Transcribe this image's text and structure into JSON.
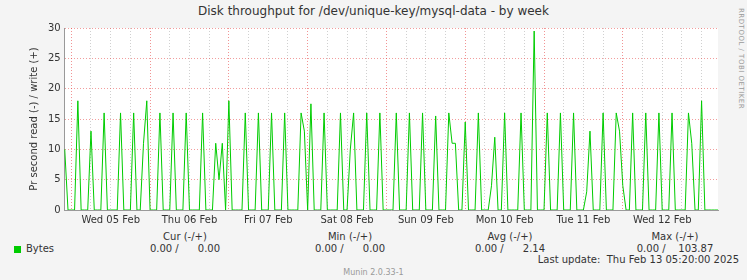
{
  "chart_data": {
    "type": "line",
    "title": "Disk throughput for /dev/unique-key/mysql-data - by week",
    "y_label": "Pr second read (-) / write (+)",
    "categories": [
      null,
      null,
      null,
      null,
      null,
      null,
      null,
      null,
      null,
      null,
      null,
      null,
      null,
      null,
      "Wed 05 Feb",
      null,
      null,
      null,
      null,
      null,
      null,
      null,
      null,
      null,
      null,
      null,
      null,
      null,
      null,
      null,
      null,
      null,
      null,
      null,
      null,
      null,
      null,
      null,
      "Thu 06 Feb",
      null,
      null,
      null,
      null,
      null,
      null,
      null,
      null,
      null,
      null,
      null,
      null,
      null,
      null,
      null,
      null,
      null,
      null,
      null,
      null,
      null,
      null,
      null,
      "Fri 07 Feb",
      null,
      null,
      null,
      null,
      null,
      null,
      null,
      null,
      null,
      null,
      null,
      null,
      null,
      null,
      null,
      null,
      null,
      null,
      null,
      null,
      null,
      null,
      null,
      "Sat 08 Feb",
      null,
      null,
      null,
      null,
      null,
      null,
      null,
      null,
      null,
      null,
      null,
      null,
      null,
      null,
      null,
      null,
      null,
      null,
      null,
      null,
      null,
      null,
      null,
      "Sun 09 Feb",
      null,
      null,
      null,
      null,
      null,
      null,
      null,
      null,
      null,
      null,
      null,
      null,
      null,
      null,
      null,
      null,
      null,
      null,
      null,
      null,
      null,
      null,
      null,
      "Mon 10 Feb",
      null,
      null,
      null,
      null,
      null,
      null,
      null,
      null,
      null,
      null,
      null,
      null,
      null,
      null,
      null,
      null,
      null,
      null,
      null,
      null,
      null,
      null,
      null,
      "Tue 11 Feb",
      null,
      null,
      null,
      null,
      null,
      null,
      null,
      null,
      null,
      null,
      null,
      null,
      null,
      null,
      null,
      null,
      null,
      null,
      null,
      null,
      null,
      null,
      null,
      "Wed 12 Feb",
      null,
      null,
      null,
      null,
      null,
      null,
      null,
      null,
      null,
      null,
      null,
      null,
      null,
      null,
      null,
      null,
      null
    ],
    "series": [
      {
        "name": "Bytes",
        "color": "#00cc00",
        "values": [
          10,
          0,
          0,
          0,
          18,
          0,
          0,
          0,
          13,
          0,
          0,
          0,
          16,
          0,
          0,
          0,
          0,
          16,
          0,
          0,
          0,
          16,
          0,
          0,
          11,
          18,
          0,
          0,
          0,
          16,
          0,
          0,
          0,
          16,
          0,
          0,
          0,
          16,
          0,
          0,
          0,
          0,
          16,
          0,
          0,
          0,
          11,
          5,
          11,
          0,
          18,
          0,
          0,
          0,
          0,
          16,
          0,
          0,
          0,
          16,
          0,
          0,
          0,
          16,
          0,
          0,
          0,
          16,
          0,
          0,
          0,
          0,
          16,
          13,
          0,
          17.5,
          0,
          0,
          0,
          16,
          0,
          0,
          0,
          0,
          16,
          0,
          0,
          10,
          16,
          0,
          0,
          0,
          16,
          0,
          0,
          0,
          16,
          0,
          0,
          0,
          0,
          16,
          0,
          0,
          0,
          16,
          0,
          0,
          0,
          16,
          0,
          0,
          0,
          15.5,
          0,
          0,
          0,
          16,
          11,
          11,
          0,
          0,
          14.5,
          0,
          0,
          0,
          16,
          0,
          0,
          0,
          4,
          12,
          0,
          0,
          16,
          0,
          0,
          0,
          0,
          16,
          0,
          0,
          0,
          29.5,
          0,
          0,
          0,
          16,
          0,
          0,
          0,
          16,
          0,
          0,
          0,
          16,
          0,
          0,
          0,
          3,
          13,
          0,
          0,
          0,
          16,
          0,
          0,
          0,
          16,
          13,
          4,
          0,
          0,
          16,
          0,
          0,
          0,
          16,
          0,
          0,
          0,
          16,
          0,
          0,
          0,
          16,
          0,
          0,
          0,
          0,
          16,
          11,
          0,
          0,
          18,
          0,
          0,
          0,
          0,
          0
        ],
        "stats": [
          {
            "label": "Cur (-/+)",
            "text": "0.00 /      0.00"
          },
          {
            "label": "Min (-/+)",
            "text": "0.00 /      0.00"
          },
          {
            "label": "Avg (-/+)",
            "text": "0.00 /      2.14"
          },
          {
            "label": "Max (-/+)",
            "text": "0.00 /    103.87"
          }
        ]
      }
    ],
    "ylim": [
      0,
      30
    ],
    "yticks": [
      0,
      5,
      10,
      15,
      20,
      25,
      30
    ],
    "grid": true,
    "footer": {
      "last_update": "Last update:  Thu Feb 13 05:20:00 2025",
      "generator": "Munin 2.0.33-1",
      "watermark": "RRDTOOL / TOBI OETIKER"
    }
  }
}
